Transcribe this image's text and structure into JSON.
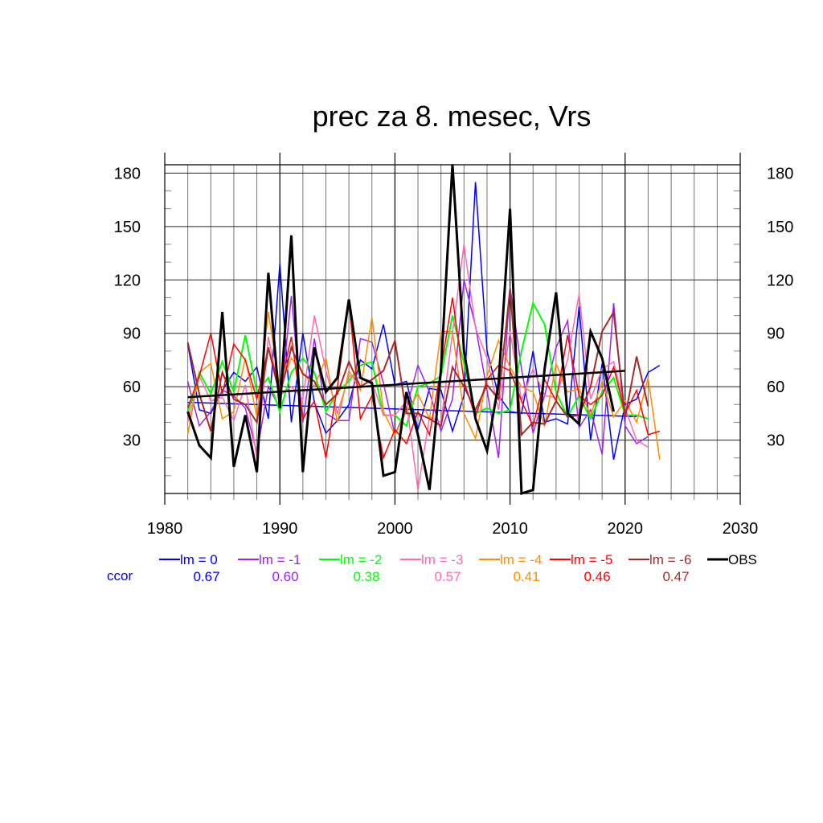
{
  "chart_data": {
    "type": "line",
    "title": "prec za 8. mesec, Vrs",
    "xlabel": "",
    "ylabel": "",
    "xlim": [
      1980,
      2030
    ],
    "ylim": [
      0,
      184.7
    ],
    "xticks": [
      1980,
      1990,
      2000,
      2010,
      2020,
      2030
    ],
    "yticks": [
      30,
      60,
      90,
      120,
      150,
      180
    ],
    "grid": true,
    "legend_position": "bottom",
    "ccor_label": "ccor",
    "series": [
      {
        "name": "lm = 0",
        "color": "#0000ff",
        "ccor": "0.67",
        "width": 1.5,
        "x_start": 1982,
        "values": [
          84,
          47,
          45,
          58,
          68,
          63,
          71,
          42,
          129,
          40,
          90,
          51,
          34,
          41,
          50,
          75,
          70,
          95,
          61,
          63,
          36,
          59,
          58,
          35,
          55,
          175,
          80,
          55,
          46,
          45,
          80,
          40,
          42,
          39,
          105,
          30,
          73,
          19,
          50,
          53,
          68,
          72
        ],
        "trend": [
          51.2,
          43.2
        ]
      },
      {
        "name": "lm = -1",
        "color": "#a020f0",
        "ccor": "0.60",
        "width": 1.5,
        "x_start": 1982,
        "values": [
          63,
          38,
          46,
          58,
          55,
          48,
          23,
          60,
          48,
          111,
          40,
          87,
          45,
          41,
          41,
          87,
          85,
          62,
          33,
          48,
          72,
          57,
          35,
          53,
          120,
          94,
          58,
          20,
          116,
          70,
          34,
          55,
          82,
          97,
          37,
          47,
          22,
          107,
          38,
          28,
          32
        ],
        "trend": null
      },
      {
        "name": "lm = -2",
        "color": "#00ff00",
        "ccor": "0.38",
        "width": 2,
        "x_start": 1982,
        "values": [
          45,
          68,
          56,
          74,
          57,
          89,
          57,
          65,
          46,
          68,
          76,
          68,
          46,
          57,
          63,
          72,
          74,
          44,
          44,
          38,
          60,
          62,
          66,
          100,
          73,
          45,
          48,
          45,
          47,
          80,
          107,
          95,
          57,
          43,
          55,
          42,
          57,
          65,
          44,
          44,
          42
        ],
        "trend": null
      },
      {
        "name": "lm = -3",
        "color": "#ff69b4",
        "ccor": "0.57",
        "width": 1.5,
        "x_start": 1982,
        "values": [
          40,
          66,
          52,
          54,
          41,
          61,
          20,
          88,
          55,
          60,
          53,
          100,
          69,
          45,
          66,
          65,
          63,
          44,
          44,
          52,
          2,
          43,
          40,
          90,
          140,
          93,
          76,
          47,
          91,
          52,
          70,
          55,
          54,
          75,
          112,
          53,
          70,
          74,
          48,
          30,
          26
        ],
        "trend": null
      },
      {
        "name": "lm = -4",
        "color": "#ff8c00",
        "ccor": "0.41",
        "width": 1.5,
        "x_start": 1982,
        "values": [
          33,
          68,
          73,
          42,
          46,
          76,
          43,
          102,
          59,
          76,
          68,
          60,
          76,
          40,
          69,
          58,
          99,
          46,
          33,
          46,
          56,
          42,
          91,
          91,
          45,
          31,
          66,
          86,
          71,
          60,
          57,
          38,
          73,
          57,
          59,
          44,
          63,
          43,
          52,
          40,
          65,
          19
        ],
        "trend": null
      },
      {
        "name": "lm = -5",
        "color": "#ff0000",
        "ccor": "0.46",
        "width": 1.5,
        "x_start": 1982,
        "values": [
          48,
          66,
          90,
          56,
          84,
          75,
          53,
          82,
          59,
          88,
          42,
          52,
          20,
          60,
          108,
          42,
          55,
          20,
          36,
          28,
          46,
          33,
          70,
          110,
          63,
          43,
          64,
          72,
          69,
          52,
          38,
          64,
          52,
          89,
          55,
          50,
          55,
          71,
          45,
          58,
          33,
          35
        ],
        "trend": null
      },
      {
        "name": "lm = -6",
        "color": "#a52a2a",
        "ccor": "0.47",
        "width": 2,
        "x_start": 1982,
        "values": [
          85,
          56,
          35,
          68,
          53,
          50,
          40,
          82,
          55,
          82,
          67,
          63,
          50,
          56,
          74,
          60,
          64,
          69,
          86,
          45,
          45,
          42,
          38,
          71,
          60,
          47,
          61,
          53,
          115,
          33,
          40,
          39,
          52,
          43,
          44,
          60,
          91,
          102,
          43,
          77,
          49
        ],
        "trend": null
      },
      {
        "name": "OBS",
        "color": "#000000",
        "ccor": "",
        "width": 3,
        "x_start": 1982,
        "values": [
          46,
          27,
          20,
          102,
          15,
          44,
          12,
          124,
          48,
          145,
          12,
          82,
          57,
          65,
          109,
          65,
          62,
          10,
          12,
          57,
          33,
          2,
          70,
          185,
          80,
          42,
          24,
          62,
          160,
          0,
          2,
          70,
          113,
          45,
          39,
          91,
          76,
          46
        ],
        "trend": [
          54.1,
          68.9
        ]
      }
    ]
  }
}
